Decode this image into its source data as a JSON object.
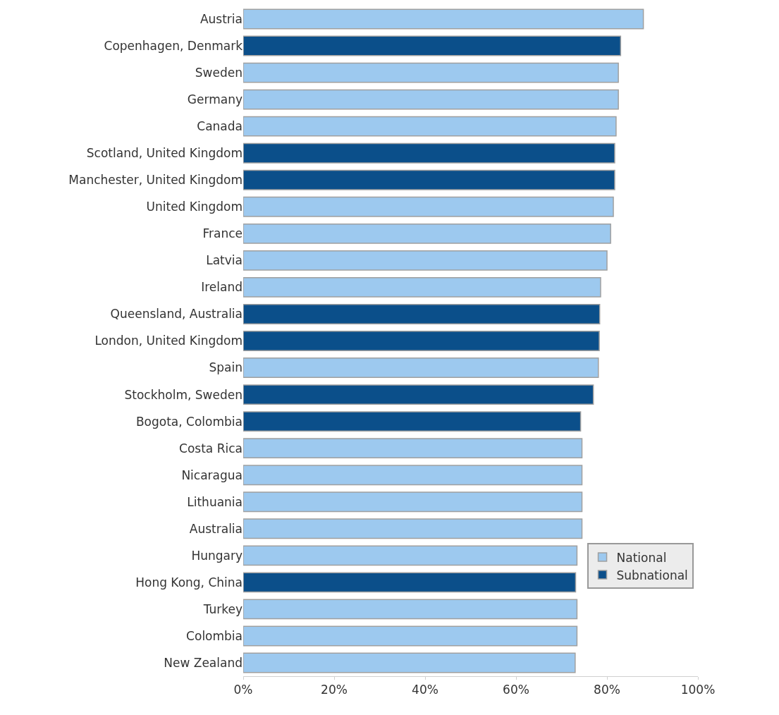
{
  "chart_data": {
    "type": "bar",
    "orientation": "horizontal",
    "categories": [
      "Austria",
      "Copenhagen, Denmark",
      "Sweden",
      "Germany",
      "Canada",
      "Scotland, United Kingdom",
      "Manchester, United Kingdom",
      "United Kingdom",
      "France",
      "Latvia",
      "Ireland",
      "Queensland, Australia",
      "London, United Kingdom",
      "Spain",
      "Stockholm, Sweden",
      "Bogota, Colombia",
      "Costa Rica",
      "Nicaragua",
      "Lithuania",
      "Australia",
      "Hungary",
      "Hong Kong, China",
      "Turkey",
      "Colombia",
      "New Zealand"
    ],
    "series": [
      {
        "name": "National",
        "color": "#9dc9ef",
        "values": [
          88,
          null,
          82.5,
          82.5,
          82,
          null,
          null,
          81.4,
          80.8,
          80,
          78.6,
          null,
          null,
          78.1,
          null,
          null,
          74.5,
          74.5,
          74.5,
          74.5,
          73.4,
          null,
          73.4,
          73.4,
          73
        ]
      },
      {
        "name": "Subnational",
        "color": "#0b4f8a",
        "values": [
          null,
          83,
          null,
          null,
          null,
          81.7,
          81.7,
          null,
          null,
          null,
          null,
          78.4,
          78.3,
          null,
          77,
          74.2,
          null,
          null,
          null,
          null,
          null,
          73.1,
          null,
          null,
          null
        ]
      }
    ],
    "xlim": [
      0,
      100
    ],
    "xticks": [
      {
        "value": 0,
        "label": "0%"
      },
      {
        "value": 20,
        "label": "20%"
      },
      {
        "value": 40,
        "label": "40%"
      },
      {
        "value": 60,
        "label": "60%"
      },
      {
        "value": 80,
        "label": "80%"
      },
      {
        "value": 100,
        "label": "100%"
      }
    ],
    "legend": "bottom right"
  }
}
